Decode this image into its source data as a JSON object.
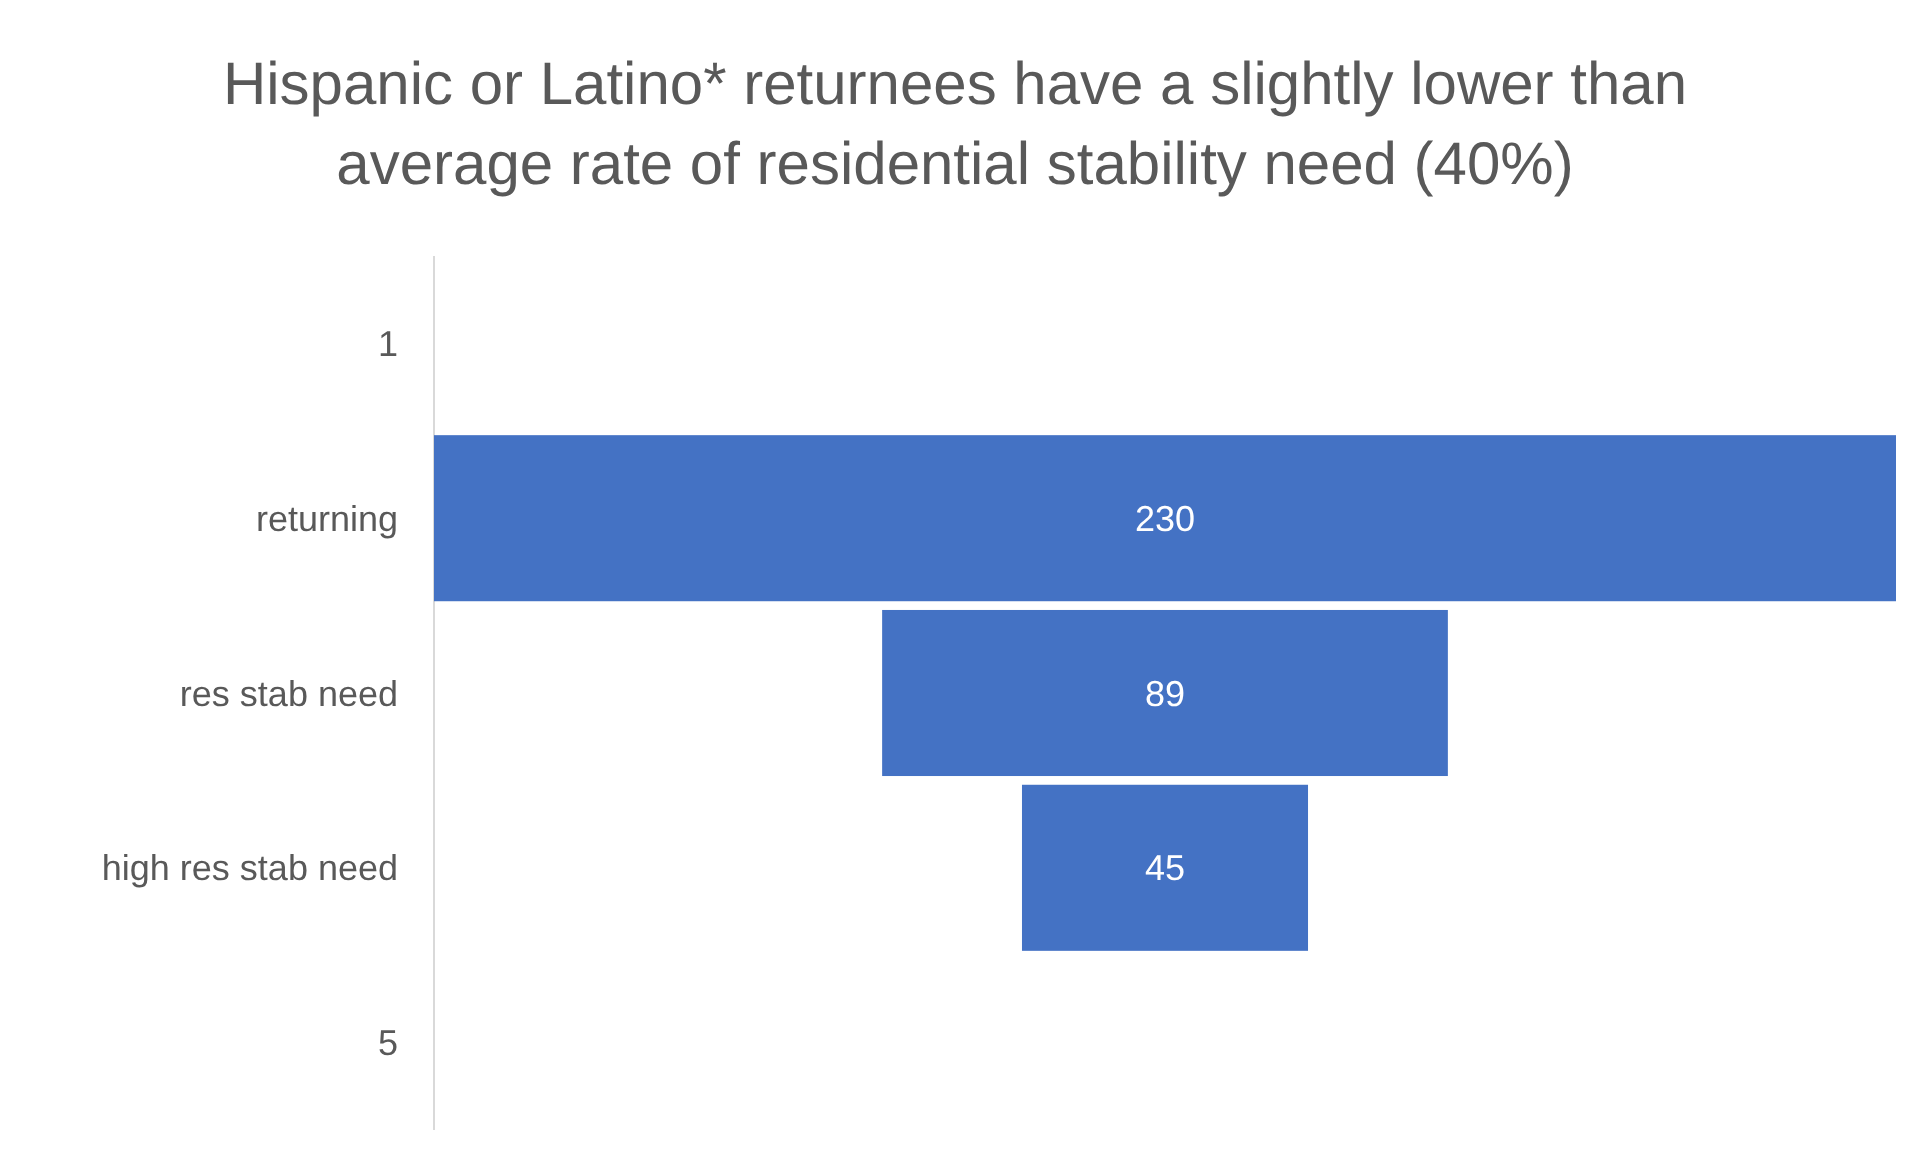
{
  "chart_data": {
    "type": "other",
    "title": "Hispanic or Latino* returnees have a slightly lower than average rate of residential stability need (40%)",
    "categories": [
      "1",
      "returning",
      "res stab need",
      "high res stab need",
      "5"
    ],
    "values": [
      null,
      230,
      89,
      45,
      null
    ],
    "color": "#4472c4",
    "data_labels": true
  }
}
